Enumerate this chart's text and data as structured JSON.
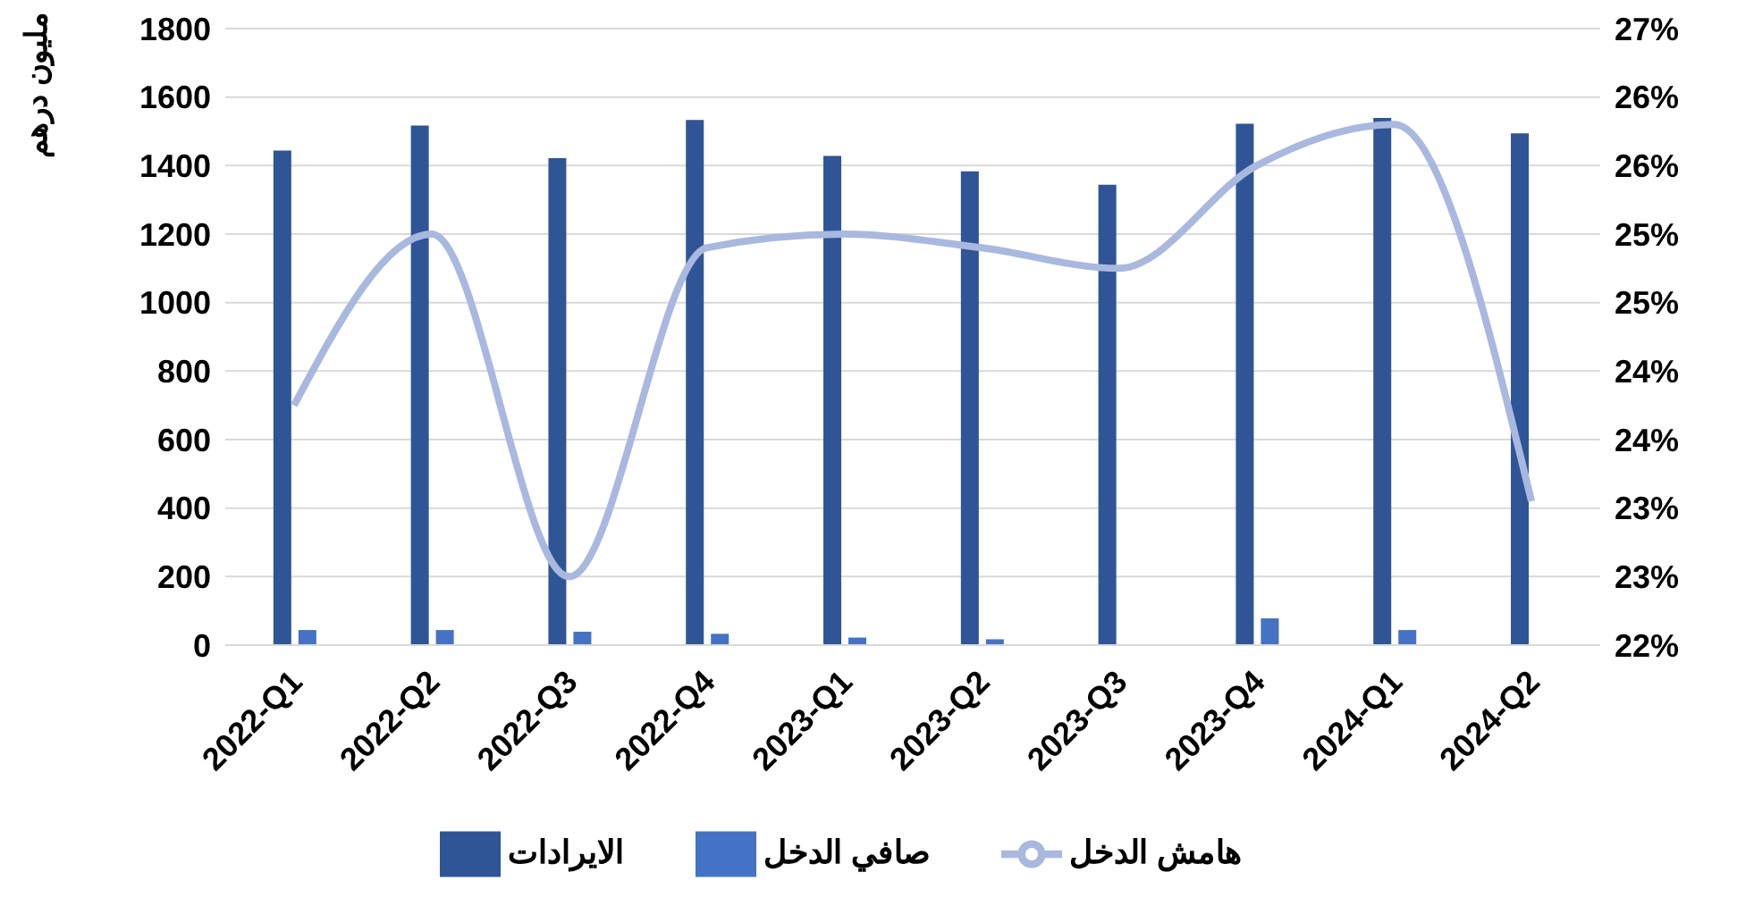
{
  "chart_data": {
    "type": "bar",
    "ylabel": "مليون درهم",
    "categories": [
      "2022-Q1",
      "2022-Q2",
      "2022-Q3",
      "2022-Q4",
      "2023-Q1",
      "2023-Q2",
      "2023-Q3",
      "2023-Q4",
      "2024-Q1",
      "2024-Q2"
    ],
    "series": [
      {
        "name": "الايرادات",
        "color": "#2f5597",
        "values": [
          1444,
          1517,
          1422,
          1533,
          1428,
          1383,
          1344,
          1522,
          1539,
          1494
        ]
      },
      {
        "name": "صافي الدخل",
        "color": "#4472c4",
        "values": [
          44,
          44,
          39,
          33,
          22,
          17,
          null,
          78,
          44,
          null
        ]
      },
      {
        "name": "هامش الدخل",
        "type": "line",
        "axis": "y2",
        "color": "#a9b8de",
        "values": [
          23.75,
          25.0,
          22.5,
          24.9,
          25.0,
          24.9,
          24.75,
          25.5,
          25.8,
          23.05
        ]
      }
    ],
    "ylim": [
      0,
      1800
    ],
    "yticks": [
      0,
      200,
      400,
      600,
      800,
      1000,
      1200,
      1400,
      1600,
      1800
    ],
    "y2lim": [
      22,
      26.5
    ],
    "y2ticks": [
      {
        "value": 22,
        "label": "22%"
      },
      {
        "value": 22.5,
        "label": "23%"
      },
      {
        "value": 23,
        "label": "23%"
      },
      {
        "value": 23.5,
        "label": "24%"
      },
      {
        "value": 24,
        "label": "24%"
      },
      {
        "value": 24.5,
        "label": "25%"
      },
      {
        "value": 25,
        "label": "25%"
      },
      {
        "value": 25.5,
        "label": "26%"
      },
      {
        "value": 26,
        "label": "26%"
      },
      {
        "value": 26.5,
        "label": "27%"
      }
    ],
    "grid": "y",
    "legend": "bottom",
    "marker": "none",
    "line_style": "solid"
  }
}
